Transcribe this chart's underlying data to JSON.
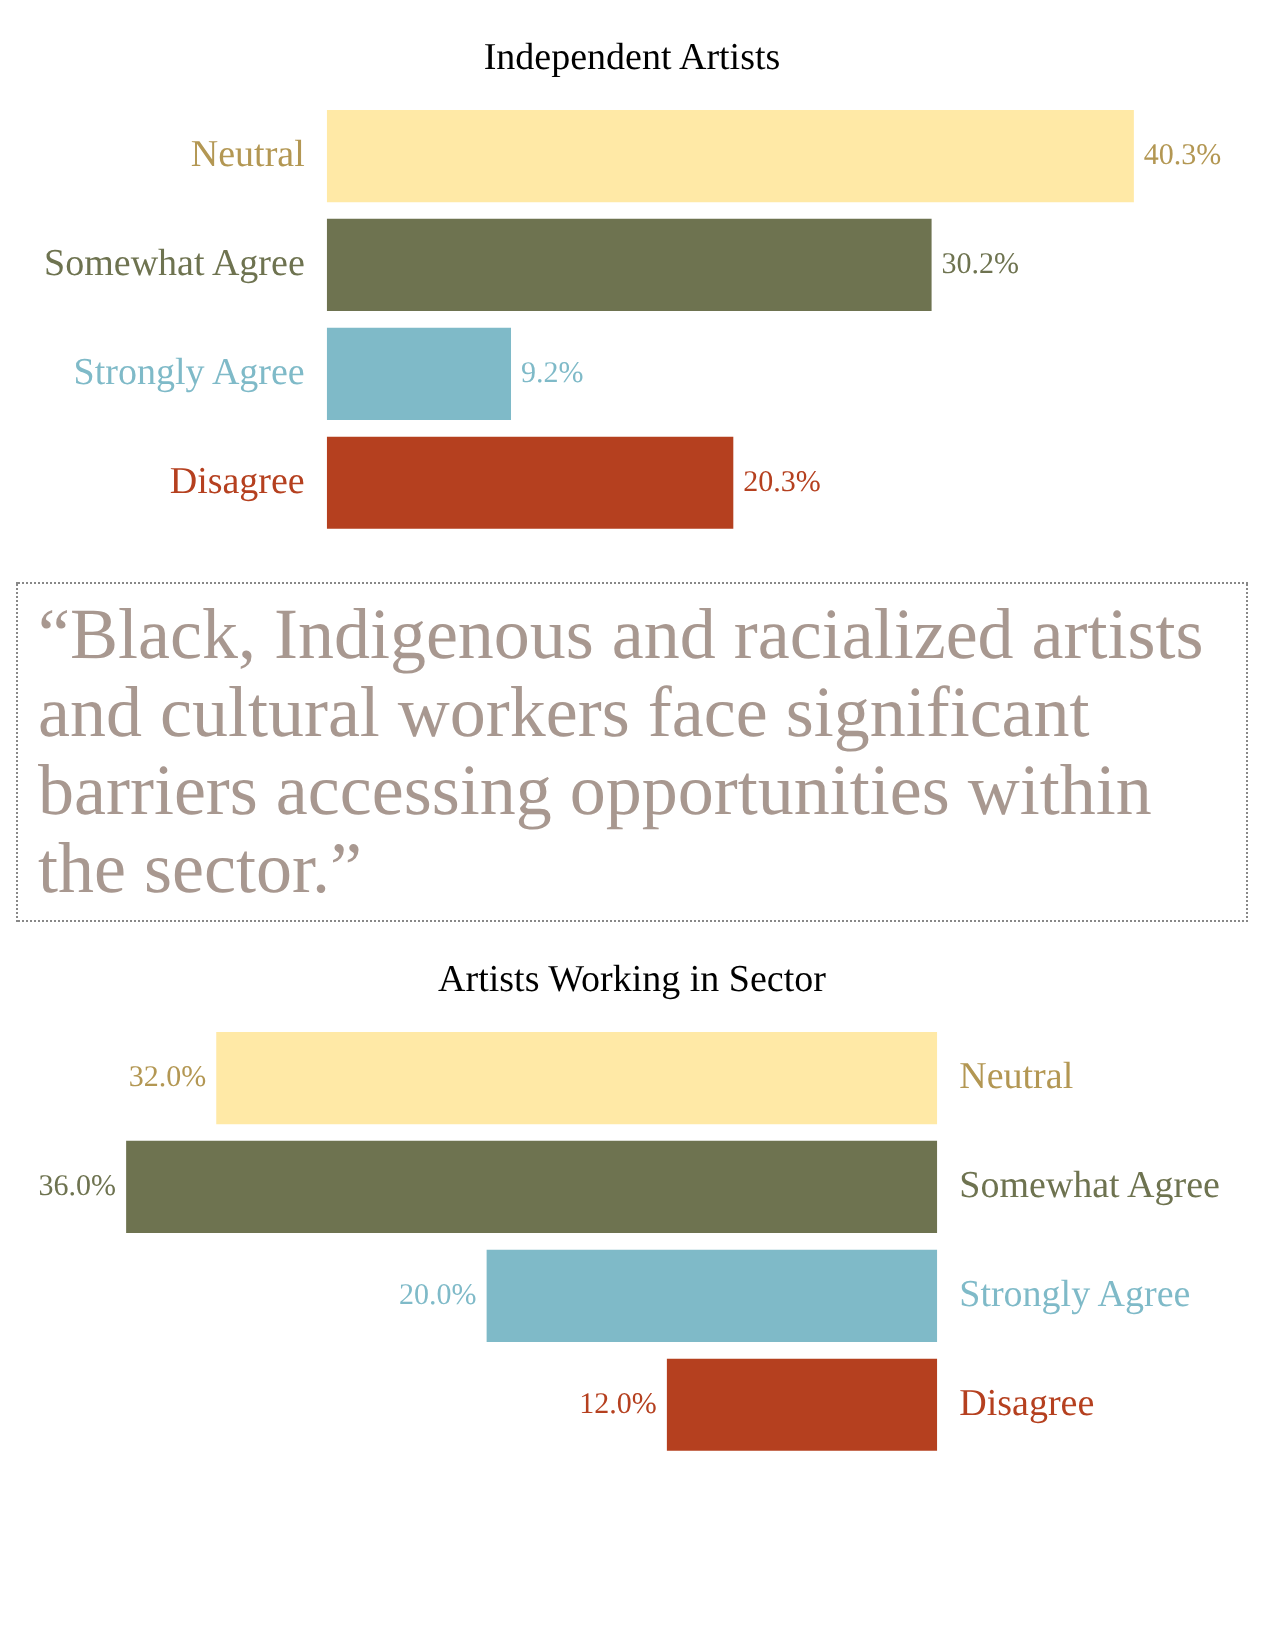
{
  "chart_data": [
    {
      "type": "bar",
      "orientation": "horizontal",
      "title": "Independent Artists",
      "categories": [
        "Neutral",
        "Somewhat Agree",
        "Strongly Agree",
        "Disagree"
      ],
      "values": [
        40.3,
        30.2,
        9.2,
        20.3
      ],
      "value_labels": [
        "40.3%",
        "30.2%",
        "9.2%",
        "20.3%"
      ],
      "colors": [
        "#ffe9a6",
        "#6e7350",
        "#7fbac8",
        "#b5401f"
      ],
      "grid": false,
      "legend": false
    },
    {
      "type": "other",
      "annotations": [
        "“Black, Indigenous and racialized artists and cultural workers face significant barriers accessing opportunities within the sector.”"
      ]
    },
    {
      "type": "bar",
      "orientation": "horizontal",
      "title": "Artists Working in Sector",
      "categories": [
        "Neutral",
        "Somewhat Agree",
        "Strongly Agree",
        "Disagree"
      ],
      "values": [
        32.0,
        36.0,
        20.0,
        12.0
      ],
      "value_labels": [
        "32.0%",
        "36.0%",
        "20.0%",
        "12.0%"
      ],
      "colors": [
        "#ffe9a6",
        "#6e7350",
        "#7fbac8",
        "#b5401f"
      ],
      "grid": false,
      "legend": false
    }
  ]
}
